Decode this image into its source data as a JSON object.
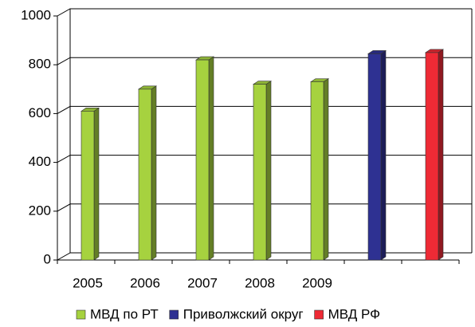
{
  "chart_data": {
    "type": "bar3d",
    "categories": [
      "2005",
      "2006",
      "2007",
      "2008",
      "2009",
      null,
      null
    ],
    "series": [
      {
        "name": "МВД по РТ",
        "color": "#a6d23f",
        "values": [
          610,
          700,
          820,
          720,
          730,
          null,
          null
        ]
      },
      {
        "name": "Приволжский округ",
        "color": "#2e3192",
        "values": [
          null,
          null,
          null,
          null,
          null,
          845,
          null
        ]
      },
      {
        "name": "МВД РФ",
        "color": "#ee2a35",
        "values": [
          null,
          null,
          null,
          null,
          null,
          null,
          850
        ]
      }
    ],
    "ylim": [
      0,
      1000
    ],
    "yticks": [
      0,
      200,
      400,
      600,
      800,
      1000
    ],
    "grid": true,
    "legend": "bottom"
  }
}
